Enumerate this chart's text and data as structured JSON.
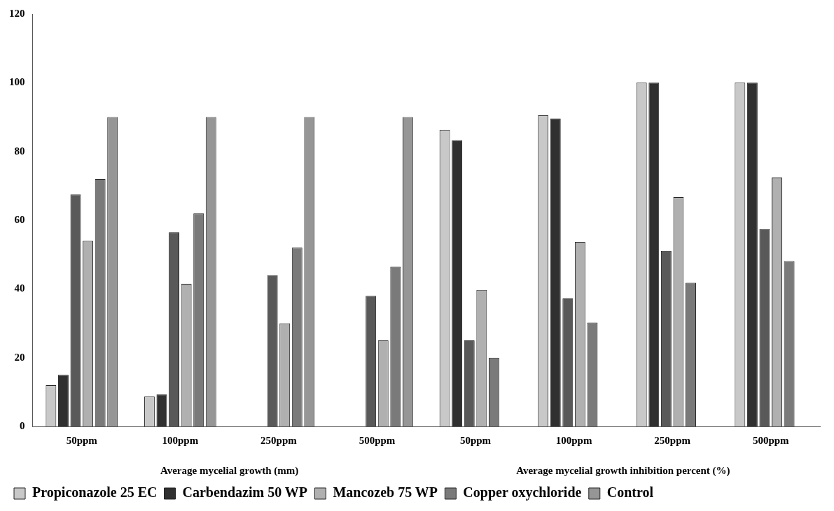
{
  "chart_data": {
    "type": "bar",
    "categories": [
      "50ppm",
      "100ppm",
      "250ppm",
      "500ppm",
      "50ppm",
      "100ppm",
      "250ppm",
      "500ppm"
    ],
    "series": [
      {
        "name": "Propiconazole 25 EC",
        "color": "#c8c8c8",
        "values": [
          12,
          8.7,
          0,
          0,
          86.3,
          90.5,
          100,
          100
        ]
      },
      {
        "name": "Carbendazim 50 WP",
        "color": "#303030",
        "values": [
          15,
          9.3,
          0,
          0,
          83.3,
          89.6,
          100,
          100
        ]
      },
      {
        "color": "#595959",
        "values": [
          67.5,
          56.5,
          44,
          38,
          25,
          37.2,
          51.1,
          57.4
        ]
      },
      {
        "name": "Mancozeb 75 WP",
        "color": "#b0b0b0",
        "values": [
          54,
          41.5,
          30,
          25,
          39.7,
          53.7,
          66.7,
          72.4
        ]
      },
      {
        "name": "Copper oxychloride",
        "color": "#7a7a7a",
        "values": [
          72,
          62,
          52,
          46.5,
          20,
          30.2,
          41.8,
          48.1
        ]
      },
      {
        "name": "Control",
        "color": "#969696",
        "values": [
          90,
          90,
          90,
          90,
          0,
          0,
          0,
          0
        ]
      }
    ],
    "annotations": [
      "Average mycelial growth (mm)",
      "Average mycelial growth inhibition percent (%)"
    ],
    "ylim": [
      0,
      120
    ],
    "yticks": [
      0,
      20,
      40,
      60,
      80,
      100,
      120
    ],
    "grid": false,
    "legend": "bottom"
  }
}
